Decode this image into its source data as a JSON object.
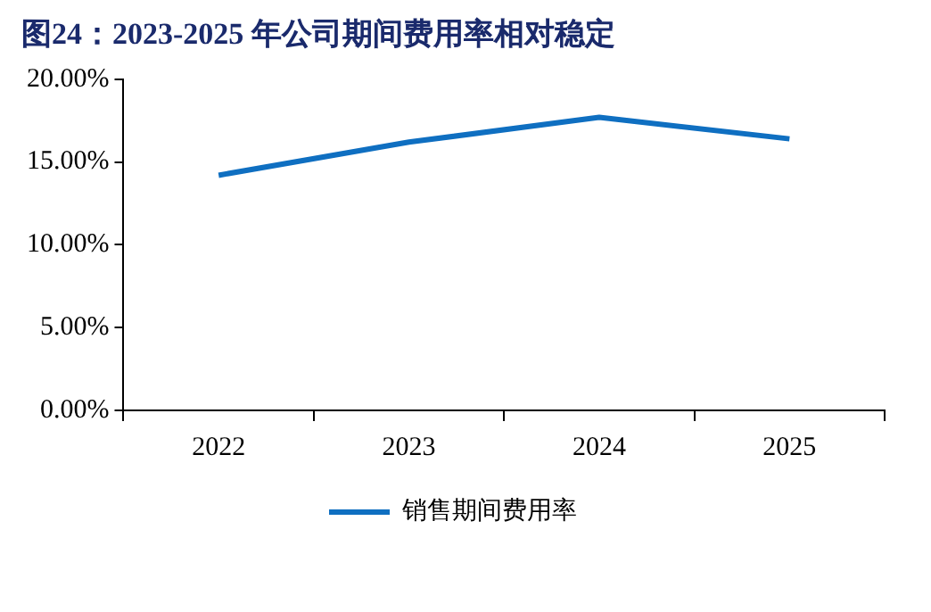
{
  "chart_data": {
    "type": "line",
    "title": "图24：2023-2025 年公司期间费用率相对稳定",
    "categories": [
      "2022",
      "2023",
      "2024",
      "2025"
    ],
    "series": [
      {
        "name": "销售期间费用率",
        "color": "#0f6fc1",
        "values": [
          14.2,
          16.2,
          17.7,
          16.4
        ]
      }
    ],
    "ylim": [
      0,
      20
    ],
    "yticks": [
      {
        "value": 0,
        "label": "0.00%"
      },
      {
        "value": 5,
        "label": "5.00%"
      },
      {
        "value": 10,
        "label": "10.00%"
      },
      {
        "value": 15,
        "label": "15.00%"
      },
      {
        "value": 20,
        "label": "20.00%"
      }
    ],
    "grid": false,
    "legend": "bottom",
    "marker": "none",
    "line_style": "solid"
  }
}
